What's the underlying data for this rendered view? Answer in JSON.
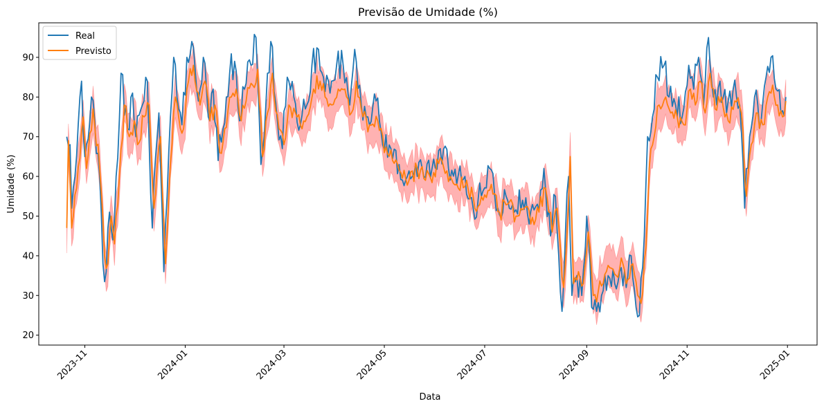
{
  "chart_data": {
    "type": "line",
    "title": "Previsão de Umidade (%)",
    "xlabel": "Data",
    "ylabel": "Umidade (%)",
    "x_start": "2023-10-21",
    "x_end": "2024-12-31",
    "xlim": [
      "2023-10-04",
      "2025-01-19"
    ],
    "ylim": [
      17.5,
      98.7
    ],
    "y_ticks": [
      20,
      30,
      40,
      50,
      60,
      70,
      80,
      90
    ],
    "x_ticks": [
      "2023-11",
      "2024-01",
      "2024-03",
      "2024-05",
      "2024-07",
      "2024-09",
      "2024-11",
      "2025-01"
    ],
    "x_tick_dates": [
      "2023-11-01",
      "2024-01-01",
      "2024-03-01",
      "2024-05-01",
      "2024-07-01",
      "2024-09-01",
      "2024-11-01",
      "2025-01-01"
    ],
    "grid": false,
    "legend_position": "top-left",
    "series": [
      {
        "name": "Real",
        "color": "#1f77b4",
        "keypoints": [
          [
            "2023-10-21",
            70
          ],
          [
            "2023-10-23",
            68
          ],
          [
            "2023-10-24",
            52
          ],
          [
            "2023-10-26",
            60
          ],
          [
            "2023-10-30",
            84
          ],
          [
            "2023-11-01",
            65
          ],
          [
            "2023-11-05",
            80
          ],
          [
            "2023-11-10",
            60
          ],
          [
            "2023-11-12",
            38
          ],
          [
            "2023-11-14",
            36
          ],
          [
            "2023-11-16",
            51
          ],
          [
            "2023-11-18",
            44
          ],
          [
            "2023-11-20",
            60
          ],
          [
            "2023-11-23",
            86
          ],
          [
            "2023-11-27",
            72
          ],
          [
            "2023-11-30",
            81
          ],
          [
            "2023-12-02",
            70
          ],
          [
            "2023-12-06",
            78
          ],
          [
            "2023-12-09",
            84
          ],
          [
            "2023-12-12",
            47
          ],
          [
            "2023-12-14",
            65
          ],
          [
            "2023-12-16",
            76
          ],
          [
            "2023-12-19",
            36
          ],
          [
            "2023-12-21",
            55
          ],
          [
            "2023-12-25",
            90
          ],
          [
            "2023-12-27",
            80
          ],
          [
            "2023-12-30",
            73
          ],
          [
            "2024-01-02",
            90
          ],
          [
            "2024-01-05",
            94
          ],
          [
            "2024-01-09",
            79
          ],
          [
            "2024-01-12",
            90
          ],
          [
            "2024-01-15",
            75
          ],
          [
            "2024-01-18",
            82
          ],
          [
            "2024-01-21",
            64
          ],
          [
            "2024-01-24",
            72
          ],
          [
            "2024-01-28",
            86
          ],
          [
            "2024-01-31",
            89
          ],
          [
            "2024-02-03",
            74
          ],
          [
            "2024-02-06",
            82
          ],
          [
            "2024-02-10",
            88
          ],
          [
            "2024-02-13",
            95
          ],
          [
            "2024-02-16",
            63
          ],
          [
            "2024-02-19",
            78
          ],
          [
            "2024-02-22",
            94
          ],
          [
            "2024-02-26",
            74
          ],
          [
            "2024-02-29",
            67
          ],
          [
            "2024-03-03",
            85
          ],
          [
            "2024-03-07",
            80
          ],
          [
            "2024-03-11",
            73
          ],
          [
            "2024-03-14",
            77
          ],
          [
            "2024-03-18",
            88
          ],
          [
            "2024-03-22",
            92
          ],
          [
            "2024-03-25",
            85
          ],
          [
            "2024-03-29",
            81
          ],
          [
            "2024-04-02",
            88
          ],
          [
            "2024-04-06",
            88
          ],
          [
            "2024-04-10",
            78
          ],
          [
            "2024-04-13",
            92
          ],
          [
            "2024-04-17",
            78
          ],
          [
            "2024-04-21",
            75
          ],
          [
            "2024-04-26",
            79
          ],
          [
            "2024-04-30",
            68
          ],
          [
            "2024-05-05",
            67
          ],
          [
            "2024-05-10",
            63
          ],
          [
            "2024-05-15",
            60
          ],
          [
            "2024-05-20",
            63
          ],
          [
            "2024-05-25",
            60
          ],
          [
            "2024-05-30",
            62
          ],
          [
            "2024-06-04",
            67
          ],
          [
            "2024-06-09",
            62
          ],
          [
            "2024-06-14",
            58
          ],
          [
            "2024-06-19",
            60
          ],
          [
            "2024-06-24",
            52
          ],
          [
            "2024-06-29",
            55
          ],
          [
            "2024-07-04",
            62
          ],
          [
            "2024-07-09",
            52
          ],
          [
            "2024-07-14",
            55
          ],
          [
            "2024-07-19",
            51
          ],
          [
            "2024-07-24",
            54
          ],
          [
            "2024-07-28",
            48
          ],
          [
            "2024-08-02",
            53
          ],
          [
            "2024-08-06",
            62
          ],
          [
            "2024-08-10",
            45
          ],
          [
            "2024-08-13",
            55
          ],
          [
            "2024-08-15",
            40
          ],
          [
            "2024-08-17",
            26
          ],
          [
            "2024-08-19",
            45
          ],
          [
            "2024-08-21",
            60
          ],
          [
            "2024-08-23",
            30
          ],
          [
            "2024-08-26",
            35
          ],
          [
            "2024-08-29",
            30
          ],
          [
            "2024-09-01",
            50
          ],
          [
            "2024-09-04",
            27
          ],
          [
            "2024-09-07",
            26
          ],
          [
            "2024-09-10",
            30
          ],
          [
            "2024-09-14",
            35
          ],
          [
            "2024-09-18",
            33
          ],
          [
            "2024-09-22",
            37
          ],
          [
            "2024-09-25",
            32
          ],
          [
            "2024-09-28",
            40
          ],
          [
            "2024-10-01",
            27
          ],
          [
            "2024-10-03",
            25
          ],
          [
            "2024-10-06",
            45
          ],
          [
            "2024-10-08",
            70
          ],
          [
            "2024-10-11",
            75
          ],
          [
            "2024-10-14",
            85
          ],
          [
            "2024-10-18",
            88
          ],
          [
            "2024-10-21",
            80
          ],
          [
            "2024-10-25",
            78
          ],
          [
            "2024-10-29",
            75
          ],
          [
            "2024-11-02",
            88
          ],
          [
            "2024-11-05",
            82
          ],
          [
            "2024-11-08",
            90
          ],
          [
            "2024-11-11",
            78
          ],
          [
            "2024-11-14",
            95
          ],
          [
            "2024-11-17",
            80
          ],
          [
            "2024-11-21",
            84
          ],
          [
            "2024-11-25",
            76
          ],
          [
            "2024-11-29",
            82
          ],
          [
            "2024-12-03",
            78
          ],
          [
            "2024-12-06",
            52
          ],
          [
            "2024-12-09",
            70
          ],
          [
            "2024-12-12",
            80
          ],
          [
            "2024-12-16",
            74
          ],
          [
            "2024-12-19",
            85
          ],
          [
            "2024-12-22",
            90
          ],
          [
            "2024-12-25",
            82
          ],
          [
            "2024-12-28",
            76
          ],
          [
            "2024-12-31",
            80
          ]
        ]
      },
      {
        "name": "Previsto",
        "color": "#ff7f0e",
        "keypoints": [
          [
            "2023-10-21",
            47
          ],
          [
            "2023-10-22",
            69
          ],
          [
            "2023-10-24",
            47
          ],
          [
            "2023-10-27",
            57
          ],
          [
            "2023-10-31",
            75
          ],
          [
            "2023-11-02",
            62
          ],
          [
            "2023-11-06",
            77
          ],
          [
            "2023-11-10",
            62
          ],
          [
            "2023-11-13",
            40
          ],
          [
            "2023-11-15",
            38
          ],
          [
            "2023-11-17",
            50
          ],
          [
            "2023-11-19",
            43
          ],
          [
            "2023-11-22",
            60
          ],
          [
            "2023-11-25",
            78
          ],
          [
            "2023-11-28",
            70
          ],
          [
            "2023-12-01",
            74
          ],
          [
            "2023-12-03",
            68
          ],
          [
            "2023-12-07",
            75
          ],
          [
            "2023-12-10",
            78
          ],
          [
            "2023-12-13",
            52
          ],
          [
            "2023-12-15",
            63
          ],
          [
            "2023-12-17",
            70
          ],
          [
            "2023-12-20",
            38
          ],
          [
            "2023-12-22",
            55
          ],
          [
            "2023-12-26",
            80
          ],
          [
            "2023-12-28",
            75
          ],
          [
            "2023-12-31",
            72
          ],
          [
            "2024-01-03",
            84
          ],
          [
            "2024-01-06",
            88
          ],
          [
            "2024-01-10",
            78
          ],
          [
            "2024-01-13",
            84
          ],
          [
            "2024-01-16",
            74
          ],
          [
            "2024-01-19",
            78
          ],
          [
            "2024-01-22",
            66
          ],
          [
            "2024-01-25",
            72
          ],
          [
            "2024-01-29",
            80
          ],
          [
            "2024-02-01",
            82
          ],
          [
            "2024-02-04",
            74
          ],
          [
            "2024-02-07",
            79
          ],
          [
            "2024-02-11",
            83
          ],
          [
            "2024-02-14",
            87
          ],
          [
            "2024-02-17",
            65
          ],
          [
            "2024-02-20",
            76
          ],
          [
            "2024-02-23",
            86
          ],
          [
            "2024-02-27",
            72
          ],
          [
            "2024-03-01",
            68
          ],
          [
            "2024-03-04",
            78
          ],
          [
            "2024-03-08",
            76
          ],
          [
            "2024-03-12",
            72
          ],
          [
            "2024-03-15",
            75
          ],
          [
            "2024-03-19",
            82
          ],
          [
            "2024-03-23",
            84
          ],
          [
            "2024-03-26",
            80
          ],
          [
            "2024-03-30",
            78
          ],
          [
            "2024-04-03",
            82
          ],
          [
            "2024-04-07",
            82
          ],
          [
            "2024-04-11",
            76
          ],
          [
            "2024-04-14",
            84
          ],
          [
            "2024-04-18",
            75
          ],
          [
            "2024-04-22",
            73
          ],
          [
            "2024-04-27",
            74
          ],
          [
            "2024-05-01",
            66
          ],
          [
            "2024-05-06",
            64
          ],
          [
            "2024-05-11",
            61
          ],
          [
            "2024-05-16",
            59
          ],
          [
            "2024-05-21",
            62
          ],
          [
            "2024-05-26",
            59
          ],
          [
            "2024-05-31",
            61
          ],
          [
            "2024-06-05",
            64
          ],
          [
            "2024-06-10",
            60
          ],
          [
            "2024-06-15",
            57
          ],
          [
            "2024-06-20",
            59
          ],
          [
            "2024-06-25",
            52
          ],
          [
            "2024-06-30",
            54
          ],
          [
            "2024-07-05",
            58
          ],
          [
            "2024-07-10",
            51
          ],
          [
            "2024-07-15",
            53
          ],
          [
            "2024-07-20",
            50
          ],
          [
            "2024-07-25",
            52
          ],
          [
            "2024-07-29",
            48
          ],
          [
            "2024-08-03",
            51
          ],
          [
            "2024-08-07",
            57
          ],
          [
            "2024-08-11",
            46
          ],
          [
            "2024-08-14",
            52
          ],
          [
            "2024-08-16",
            42
          ],
          [
            "2024-08-18",
            32
          ],
          [
            "2024-08-20",
            45
          ],
          [
            "2024-08-22",
            65
          ],
          [
            "2024-08-24",
            33
          ],
          [
            "2024-08-27",
            36
          ],
          [
            "2024-08-30",
            33
          ],
          [
            "2024-09-02",
            46
          ],
          [
            "2024-09-05",
            30
          ],
          [
            "2024-09-08",
            31
          ],
          [
            "2024-09-11",
            33
          ],
          [
            "2024-09-15",
            37
          ],
          [
            "2024-09-19",
            35
          ],
          [
            "2024-09-23",
            38
          ],
          [
            "2024-09-26",
            34
          ],
          [
            "2024-09-29",
            38
          ],
          [
            "2024-10-02",
            30
          ],
          [
            "2024-10-04",
            28
          ],
          [
            "2024-10-07",
            42
          ],
          [
            "2024-10-09",
            62
          ],
          [
            "2024-10-12",
            70
          ],
          [
            "2024-10-15",
            78
          ],
          [
            "2024-10-19",
            80
          ],
          [
            "2024-10-22",
            76
          ],
          [
            "2024-10-26",
            75
          ],
          [
            "2024-10-30",
            73
          ],
          [
            "2024-11-03",
            82
          ],
          [
            "2024-11-06",
            78
          ],
          [
            "2024-11-09",
            84
          ],
          [
            "2024-11-12",
            76
          ],
          [
            "2024-11-15",
            86
          ],
          [
            "2024-11-18",
            77
          ],
          [
            "2024-11-22",
            80
          ],
          [
            "2024-11-26",
            74
          ],
          [
            "2024-11-30",
            79
          ],
          [
            "2024-12-04",
            76
          ],
          [
            "2024-12-07",
            55
          ],
          [
            "2024-12-10",
            68
          ],
          [
            "2024-12-13",
            76
          ],
          [
            "2024-12-17",
            73
          ],
          [
            "2024-12-20",
            80
          ],
          [
            "2024-12-23",
            83
          ],
          [
            "2024-12-26",
            78
          ],
          [
            "2024-12-29",
            75
          ],
          [
            "2024-12-31",
            79
          ]
        ]
      }
    ],
    "confidence_band": {
      "color": "#ff0000",
      "opacity": 0.3,
      "half_width": 5
    }
  }
}
